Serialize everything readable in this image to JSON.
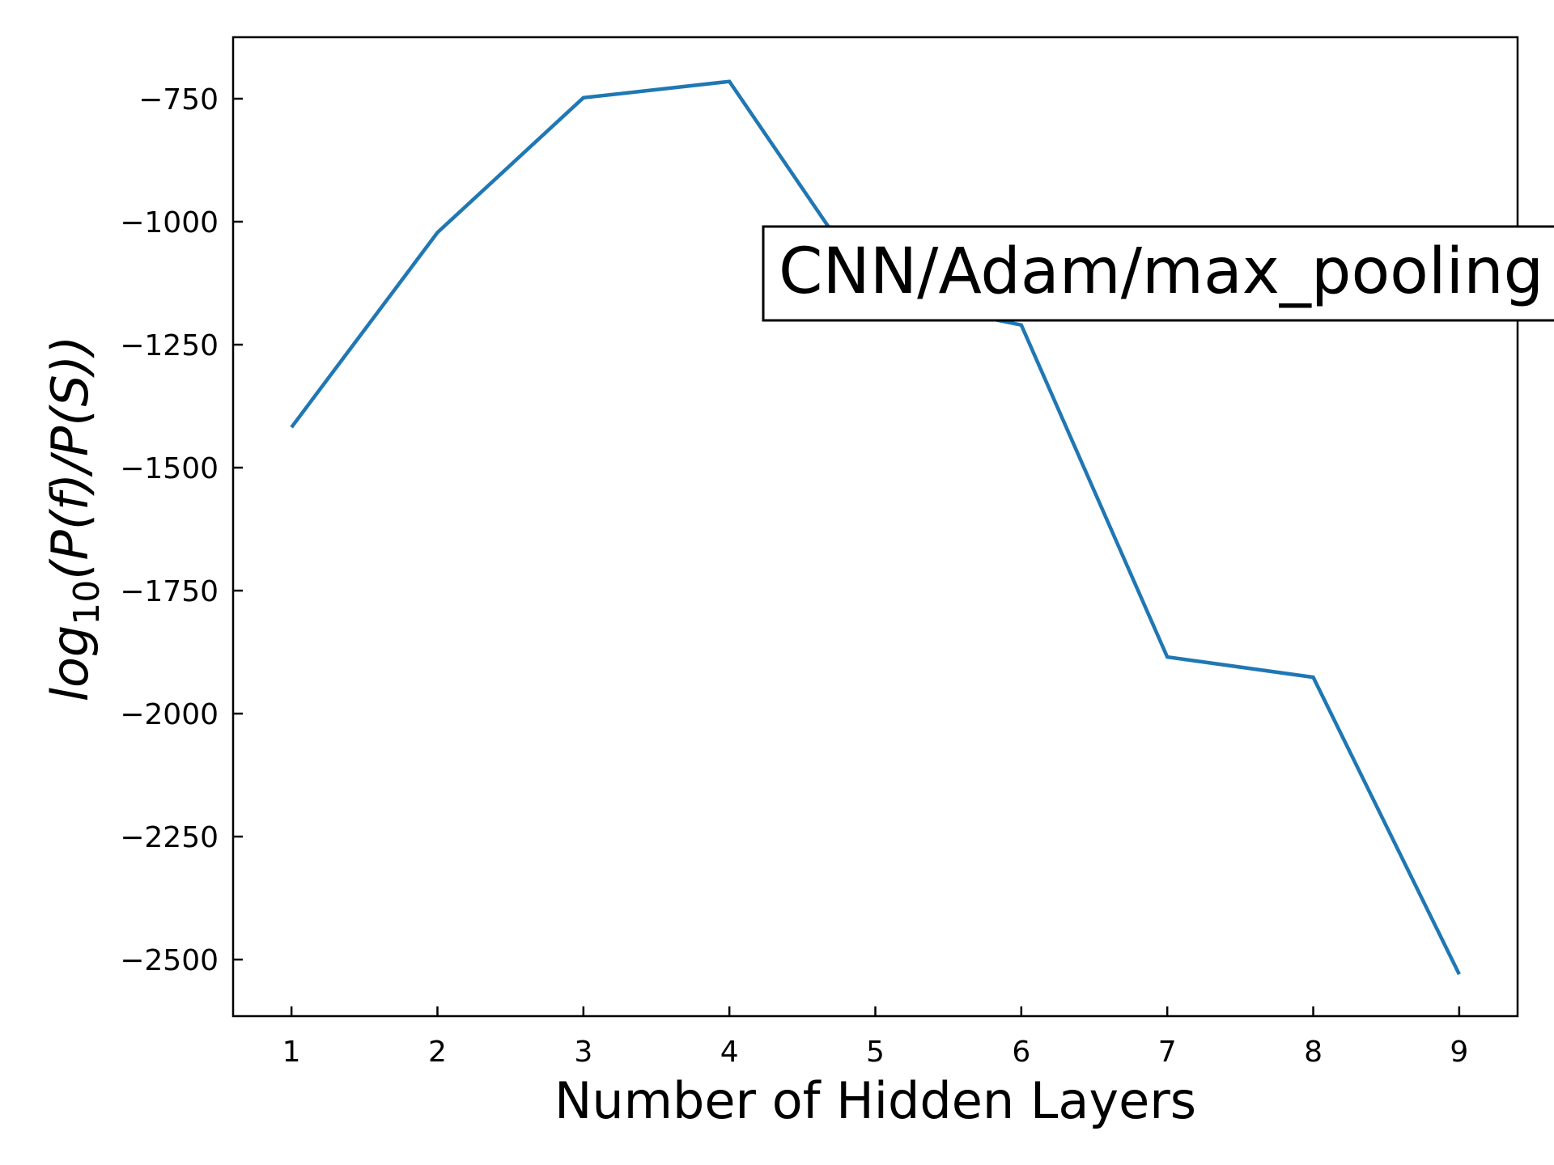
{
  "chart_data": {
    "type": "line",
    "title": "",
    "xlabel": "Number of Hidden Layers",
    "ylabel": "log10(P(f)/P(S))",
    "ylabel_parts": {
      "main": "log",
      "subscript": "10",
      "rest": "(P(f)/P(S))"
    },
    "x": [
      1,
      2,
      3,
      4,
      5,
      6,
      7,
      8,
      9
    ],
    "xticks": [
      1,
      2,
      3,
      4,
      5,
      6,
      7,
      8,
      9
    ],
    "xlim": [
      0.6,
      9.4
    ],
    "yticks": [
      -750,
      -1000,
      -1250,
      -1500,
      -1750,
      -2000,
      -2250,
      -2500
    ],
    "ytick_labels": [
      "−750",
      "−1000",
      "−1250",
      "−1500",
      "−1750",
      "−2000",
      "−2250",
      "−2500"
    ],
    "ylim": [
      -2615,
      -625
    ],
    "series": [
      {
        "values": [
          -1418,
          -1022,
          -748,
          -715,
          -1150,
          -1210,
          -1885,
          -1926,
          -2530
        ],
        "color": "#1f77b4"
      }
    ],
    "annotation": "CNN/Adam/max_pooling",
    "grid": false,
    "legend": "none"
  }
}
